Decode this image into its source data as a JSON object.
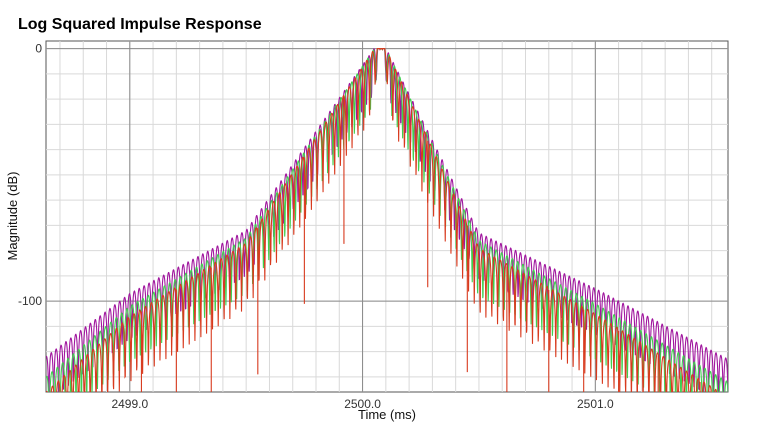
{
  "chart_data": {
    "type": "line",
    "title": "Log Squared Impulse Response",
    "xlabel": "Time (ms)",
    "ylabel": "Magnitude (dB)",
    "xlim": [
      2498.64,
      2501.57
    ],
    "ylim": [
      -136,
      3
    ],
    "x_ticks": [
      2499.0,
      2500.0,
      2501.0
    ],
    "x_tick_labels": [
      "2499.0",
      "2500.0",
      "2501.0"
    ],
    "y_ticks": [
      0,
      -100
    ],
    "y_tick_labels": [
      "0",
      "-100"
    ],
    "grid": true,
    "legend": "none",
    "peak": {
      "x": 2500.08,
      "y": 0
    },
    "series": [
      {
        "color": "#a0169e",
        "ripple_period_ms": 0.021,
        "near_peak_dB_at_edge": -143,
        "x": [
          2498.64,
          2499.0,
          2499.5,
          2500.08,
          2500.5,
          2501.0,
          2501.57
        ],
        "envelope_dB": [
          -126,
          -101,
          -76,
          0,
          -77,
          -99,
          -127
        ]
      },
      {
        "color": "#3fcf4f",
        "ripple_period_ms": 0.023,
        "x": [
          2498.64,
          2499.0,
          2499.5,
          2500.08,
          2500.5,
          2501.0,
          2501.57
        ],
        "envelope_dB": [
          -134,
          -106,
          -79,
          0,
          -80,
          -105,
          -136
        ]
      },
      {
        "color": "#d83a1e",
        "ripple_period_ms": 0.025,
        "x": [
          2498.64,
          2499.0,
          2499.5,
          2500.08,
          2500.5,
          2501.0,
          2501.57
        ],
        "envelope_dB": [
          -140,
          -110,
          -81,
          0,
          -83,
          -109,
          -142
        ]
      }
    ]
  }
}
